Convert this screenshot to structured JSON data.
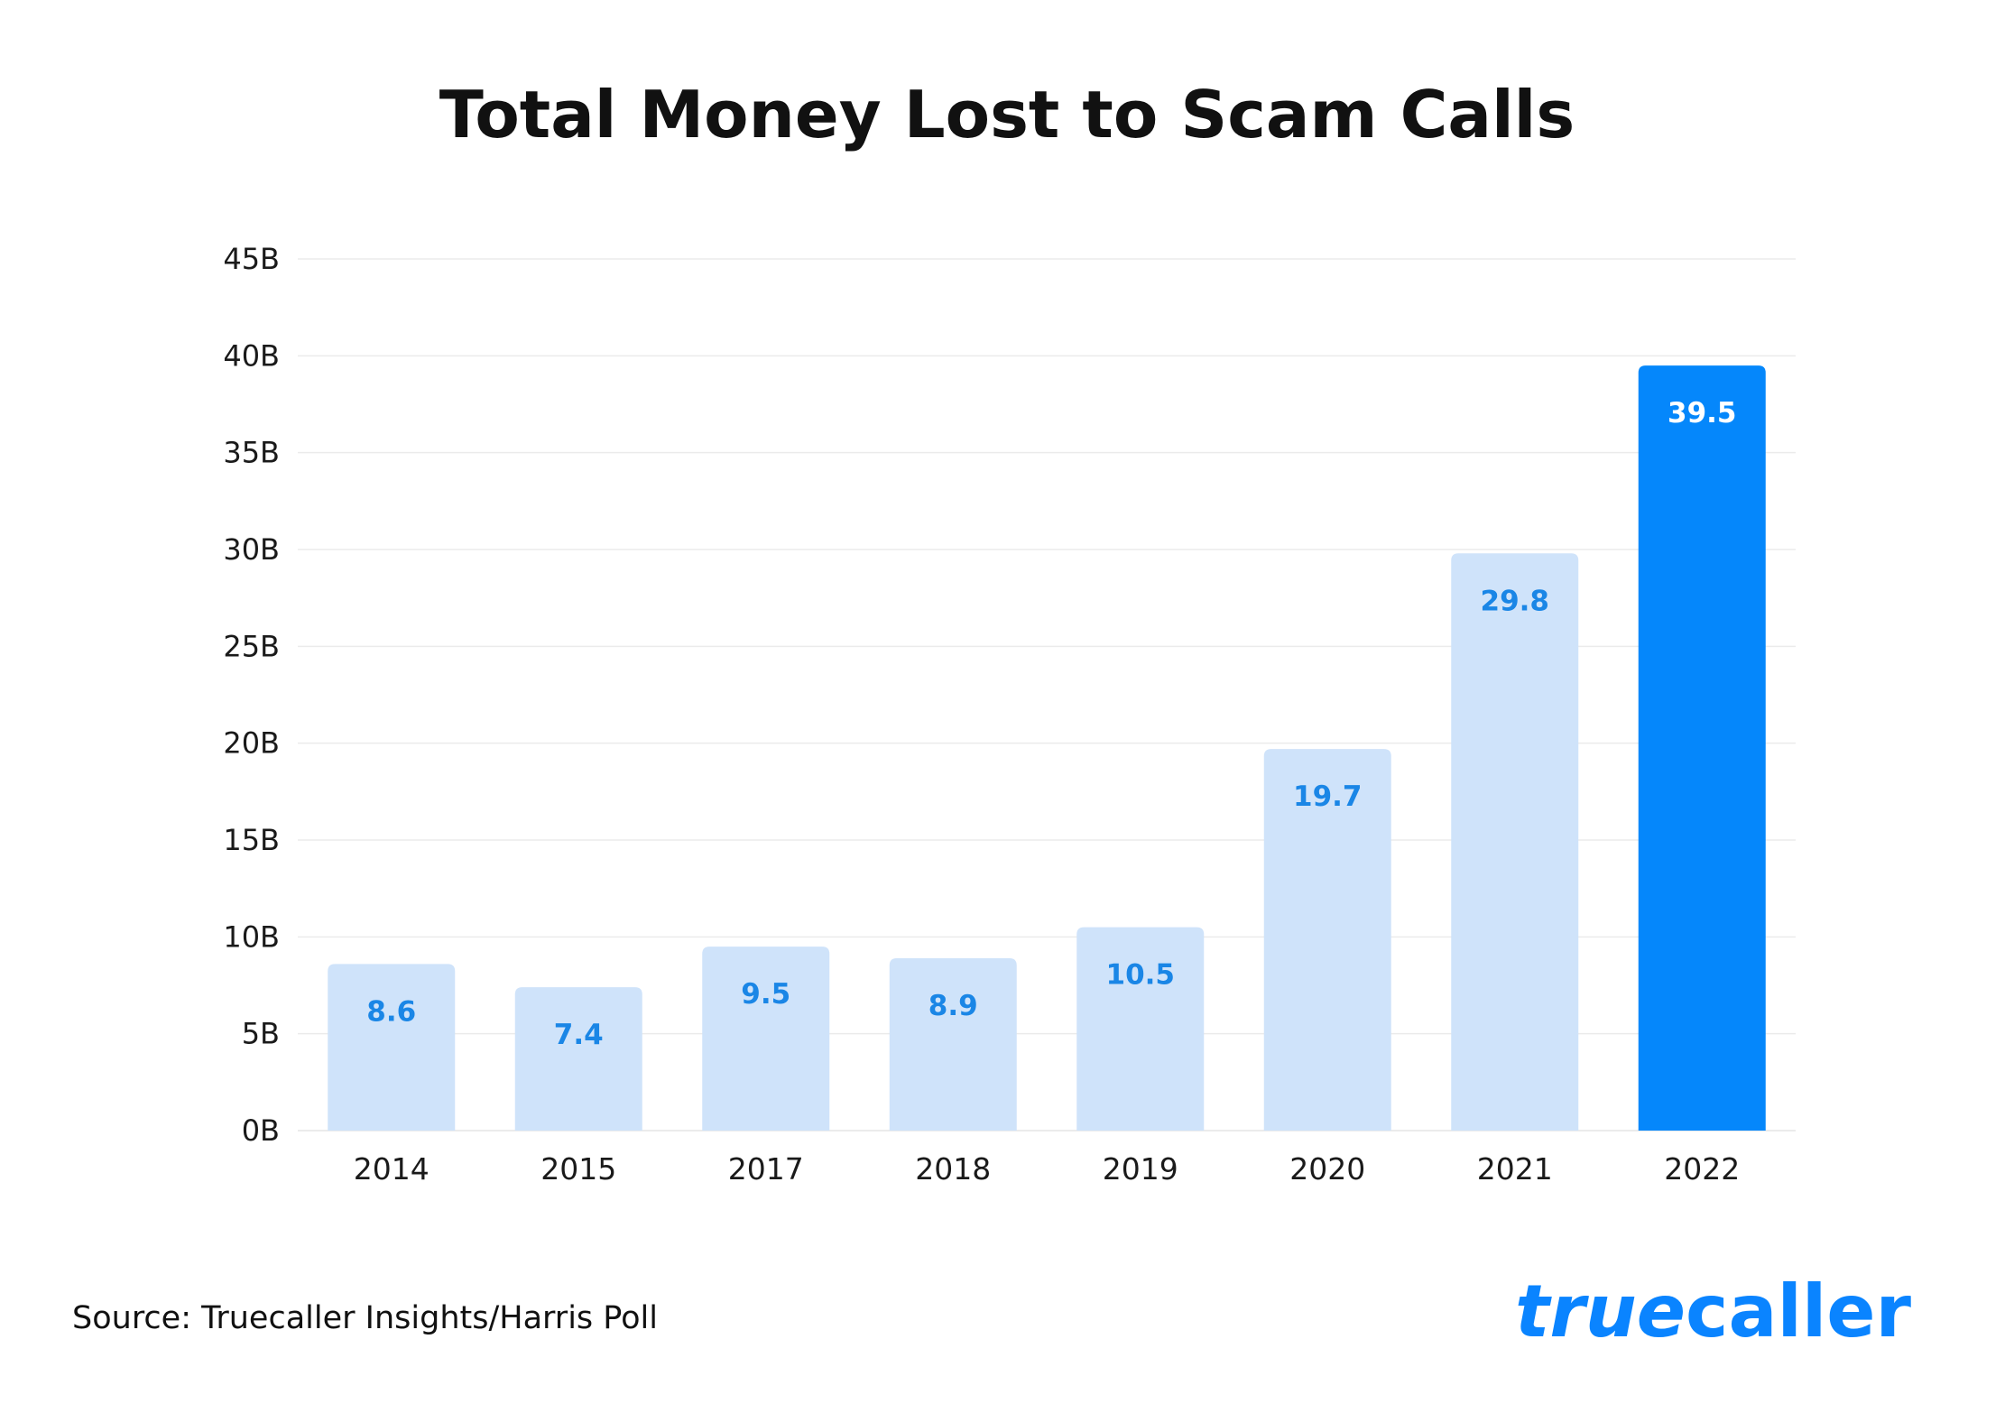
{
  "colors": {
    "bar_light": "#cfe3fa",
    "bar_highlight": "#0587fb",
    "label_on_light": "#1a86e6",
    "label_on_highlight": "#ffffff",
    "grid": "#ebebeb",
    "brand": "#0a84ff"
  },
  "chart_data": {
    "type": "bar",
    "title": "Total Money Lost to Scam Calls",
    "xlabel": "",
    "ylabel": "",
    "categories": [
      "2014",
      "2015",
      "2017",
      "2018",
      "2019",
      "2020",
      "2021",
      "2022"
    ],
    "values": [
      8.6,
      7.4,
      9.5,
      8.9,
      10.5,
      19.7,
      29.8,
      39.5
    ],
    "data_labels": [
      "8.6",
      "7.4",
      "9.5",
      "8.9",
      "10.5",
      "19.7",
      "29.8",
      "39.5"
    ],
    "highlighted_category": "2022",
    "ylim": [
      0,
      45
    ],
    "yticks": [
      0,
      5,
      10,
      15,
      20,
      25,
      30,
      35,
      40,
      45
    ],
    "ytick_labels": [
      "0B",
      "5B",
      "10B",
      "15B",
      "20B",
      "25B",
      "30B",
      "35B",
      "40B",
      "45B"
    ],
    "grid": true,
    "legend": "none"
  },
  "footer": {
    "source": "Source: Truecaller Insights/Harris Poll",
    "brand_part1": "true",
    "brand_part2": "caller"
  }
}
